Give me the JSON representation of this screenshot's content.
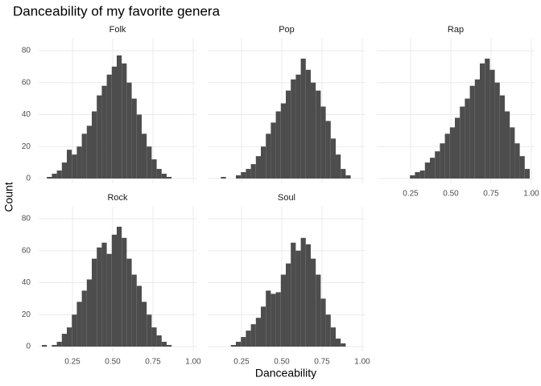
{
  "chart_data": {
    "type": "histogram",
    "title": "Danceability of my favorite genera",
    "x_label": "Danceability",
    "y_label": "Count",
    "color": "#4d4d4d",
    "grid": true,
    "xlim": [
      0.04,
      1.02
    ],
    "xticks": [
      0.25,
      {
        "value": 0.5,
        "label": "0.50"
      },
      0.75,
      {
        "value": 1,
        "label": "1.00"
      }
    ],
    "ylim": [
      0,
      85
    ],
    "yticks": [
      0,
      20,
      40,
      60,
      80
    ],
    "bins": [
      0.06,
      0.091,
      0.122,
      0.153,
      0.184,
      0.215,
      0.246,
      0.277,
      0.308,
      0.339,
      0.37,
      0.401,
      0.432,
      0.463,
      0.494,
      0.525,
      0.556,
      0.587,
      0.618,
      0.649,
      0.68,
      0.711,
      0.742,
      0.773,
      0.804,
      0.835,
      0.866,
      0.897,
      0.928,
      0.959,
      0.99
    ],
    "panels": [
      {
        "name": "Folk",
        "values": [
          0,
          1,
          3,
          5,
          10,
          18,
          15,
          20,
          28,
          33,
          42,
          52,
          58,
          65,
          70,
          77,
          72,
          60,
          50,
          40,
          28,
          20,
          12,
          6,
          3,
          1,
          0,
          0,
          0,
          0
        ]
      },
      {
        "name": "Pop",
        "values": [
          0,
          0,
          1,
          0,
          0,
          2,
          4,
          6,
          9,
          14,
          20,
          28,
          35,
          42,
          47,
          55,
          62,
          65,
          75,
          68,
          60,
          55,
          45,
          36,
          25,
          15,
          6,
          2,
          0,
          0
        ]
      },
      {
        "name": "Rap",
        "values": [
          0,
          0,
          0,
          0,
          0,
          0,
          2,
          4,
          5,
          10,
          13,
          17,
          22,
          28,
          32,
          38,
          45,
          50,
          58,
          62,
          72,
          75,
          68,
          60,
          52,
          42,
          32,
          22,
          14,
          6
        ]
      },
      {
        "name": "Rock",
        "values": [
          1,
          0,
          1,
          3,
          8,
          12,
          20,
          28,
          35,
          42,
          55,
          62,
          65,
          58,
          70,
          75,
          68,
          55,
          45,
          38,
          28,
          20,
          12,
          7,
          3,
          1,
          0,
          0,
          0,
          0
        ]
      },
      {
        "name": "Soul",
        "values": [
          0,
          0,
          0,
          0,
          1,
          3,
          6,
          10,
          14,
          18,
          25,
          35,
          33,
          34,
          45,
          52,
          65,
          60,
          68,
          64,
          55,
          45,
          30,
          20,
          12,
          5,
          2,
          0,
          0,
          0
        ]
      }
    ]
  }
}
